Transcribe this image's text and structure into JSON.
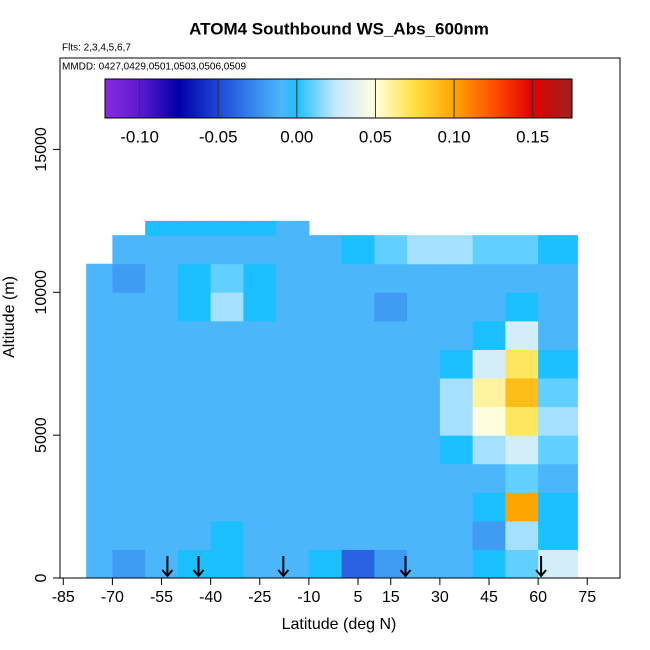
{
  "chart_data": {
    "type": "heatmap",
    "title": "ATOM4 Southbound WS_Abs_600nm",
    "subtitle": "Flts: 2,3,4,5,6,7",
    "annotation": "MMDD: 0427,0429,0501,0503,0506,0509",
    "xlabel": "Latitude (deg N)",
    "ylabel": "Altitude (m)",
    "xlim": [
      -86,
      85
    ],
    "ylim": [
      0,
      18200
    ],
    "xticks": [
      -85,
      -70,
      -55,
      -40,
      -25,
      -10,
      5,
      15,
      30,
      45,
      60,
      75
    ],
    "yticks": [
      0,
      5000,
      10000,
      15000
    ],
    "x_edges": [
      -78,
      -70,
      -60,
      -50,
      -40,
      -30,
      -20,
      -10,
      0,
      10,
      20,
      30,
      40,
      50,
      60,
      72
    ],
    "y_edges": [
      0,
      1000,
      2000,
      3000,
      4000,
      5000,
      6000,
      7000,
      8000,
      9000,
      10000,
      11000,
      12000,
      12500
    ],
    "z": [
      [
        -0.01,
        -0.02,
        -0.01,
        0.0,
        0.0,
        -0.01,
        -0.01,
        0.0,
        -0.04,
        -0.02,
        -0.01,
        -0.01,
        0.0,
        0.01,
        0.03
      ],
      [
        -0.01,
        -0.01,
        -0.01,
        -0.01,
        0.0,
        -0.01,
        -0.01,
        -0.01,
        -0.01,
        -0.01,
        -0.01,
        -0.01,
        -0.02,
        0.02,
        0.0
      ],
      [
        -0.01,
        -0.01,
        -0.01,
        -0.01,
        -0.01,
        -0.01,
        -0.01,
        -0.01,
        -0.01,
        -0.01,
        -0.01,
        -0.01,
        0.0,
        0.1,
        0.0
      ],
      [
        -0.01,
        -0.01,
        -0.01,
        -0.01,
        -0.01,
        -0.01,
        -0.01,
        -0.01,
        -0.01,
        -0.01,
        -0.01,
        -0.01,
        -0.01,
        0.01,
        -0.01
      ],
      [
        -0.01,
        -0.01,
        -0.01,
        -0.01,
        -0.01,
        -0.01,
        -0.01,
        -0.01,
        -0.01,
        -0.01,
        -0.01,
        0.0,
        0.02,
        0.03,
        0.01
      ],
      [
        -0.01,
        -0.01,
        -0.01,
        -0.01,
        -0.01,
        -0.01,
        -0.01,
        -0.01,
        -0.01,
        -0.01,
        -0.01,
        0.02,
        0.05,
        0.07,
        0.02
      ],
      [
        -0.01,
        -0.01,
        -0.01,
        -0.01,
        -0.01,
        -0.01,
        -0.01,
        -0.01,
        -0.01,
        -0.01,
        -0.01,
        0.02,
        0.06,
        0.09,
        0.01
      ],
      [
        -0.01,
        -0.01,
        -0.01,
        -0.01,
        -0.01,
        -0.01,
        -0.01,
        -0.01,
        -0.01,
        -0.01,
        -0.01,
        0.0,
        0.03,
        0.07,
        0.0
      ],
      [
        -0.01,
        -0.01,
        -0.01,
        -0.01,
        -0.01,
        -0.01,
        -0.01,
        -0.01,
        -0.01,
        -0.01,
        -0.01,
        -0.01,
        0.0,
        0.03,
        -0.01
      ],
      [
        -0.01,
        -0.01,
        -0.01,
        0.0,
        0.02,
        0.0,
        -0.01,
        -0.01,
        -0.01,
        -0.02,
        -0.01,
        -0.01,
        -0.01,
        0.0,
        -0.01
      ],
      [
        -0.01,
        -0.02,
        -0.01,
        0.0,
        0.01,
        0.0,
        -0.01,
        -0.01,
        -0.01,
        -0.01,
        -0.01,
        -0.01,
        -0.01,
        -0.01,
        -0.01
      ],
      [
        null,
        -0.01,
        -0.01,
        -0.01,
        -0.01,
        -0.01,
        -0.01,
        -0.01,
        0.0,
        0.01,
        0.02,
        0.02,
        0.01,
        0.01,
        0.0
      ],
      [
        null,
        null,
        0.0,
        0.0,
        0.0,
        0.0,
        -0.01,
        null,
        null,
        null,
        null,
        null,
        null,
        null,
        null
      ]
    ],
    "zlim": [
      -0.122,
      0.175
    ],
    "zticks": [
      {
        "value": -0.1,
        "label": "-0.10"
      },
      {
        "value": -0.05,
        "label": "-0.05"
      },
      {
        "value": 0,
        "label": "0.00"
      },
      0.05,
      {
        "value": 0.1,
        "label": "0.10"
      },
      0.15
    ],
    "colorscale": [
      [
        -0.122,
        "#8a2be2"
      ],
      [
        -0.1,
        "#5a1ad0"
      ],
      [
        -0.075,
        "#0000a8"
      ],
      [
        -0.05,
        "#1e46d8"
      ],
      [
        -0.025,
        "#3a8ef0"
      ],
      [
        -0.01,
        "#4cb6fa"
      ],
      [
        0,
        "#1cc0ff"
      ],
      [
        0.025,
        "#c8e8ff"
      ],
      [
        0.05,
        "#ffffe0"
      ],
      [
        0.075,
        "#ffe040"
      ],
      [
        0.1,
        "#ffa500"
      ],
      [
        0.125,
        "#ff5000"
      ],
      [
        0.15,
        "#e00000"
      ],
      [
        0.175,
        "#a02020"
      ]
    ],
    "arrows": [
      -53.2,
      -43.7,
      -17.8,
      19.5,
      60.9
    ]
  }
}
